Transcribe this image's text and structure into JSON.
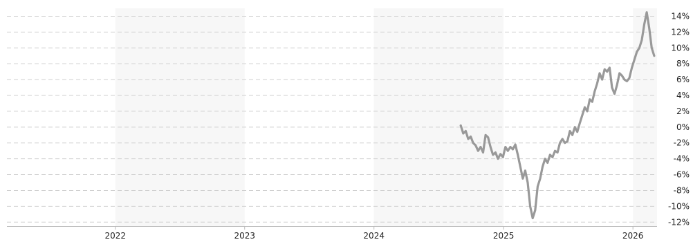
{
  "chart_data": {
    "type": "line",
    "title": "",
    "xlabel": "",
    "ylabel": "",
    "x_ticks": [
      "2022",
      "2023",
      "2024",
      "2025",
      "2026"
    ],
    "y_ticks": [
      "14%",
      "12%",
      "10%",
      "8%",
      "6%",
      "4%",
      "2%",
      "0%",
      "-2%",
      "-4%",
      "-6%",
      "-8%",
      "-10%",
      "-12%"
    ],
    "y_tick_values": [
      14,
      12,
      10,
      8,
      6,
      4,
      2,
      0,
      -2,
      -4,
      -6,
      -8,
      -10,
      -12
    ],
    "xlim": [
      "2021-03-01",
      "2026-03-10"
    ],
    "ylim": [
      -12.5,
      15
    ],
    "y_unit": "%",
    "grid": true,
    "shaded_year_bands": [
      "2022",
      "2024",
      "2026"
    ],
    "colors": {
      "line": "#999999",
      "band": "#f7f7f7",
      "grid": "#cfcfcf"
    },
    "series": [
      {
        "x": [
          "2024-09-02",
          "2024-09-09",
          "2024-09-16",
          "2024-09-23",
          "2024-09-30",
          "2024-10-07",
          "2024-10-14",
          "2024-10-21",
          "2024-10-28",
          "2024-11-04",
          "2024-11-11",
          "2024-11-18",
          "2024-11-25",
          "2024-12-02",
          "2024-12-09",
          "2024-12-16",
          "2024-12-23",
          "2024-12-30",
          "2025-01-06",
          "2025-01-13",
          "2025-01-20",
          "2025-01-27",
          "2025-02-03",
          "2025-02-10",
          "2025-02-17",
          "2025-02-24",
          "2025-03-03",
          "2025-03-10",
          "2025-03-17",
          "2025-03-24",
          "2025-03-31",
          "2025-04-07",
          "2025-04-14",
          "2025-04-21",
          "2025-04-28",
          "2025-05-05",
          "2025-05-12",
          "2025-05-19",
          "2025-05-26",
          "2025-06-02",
          "2025-06-09",
          "2025-06-16",
          "2025-06-23",
          "2025-06-30",
          "2025-07-07",
          "2025-07-14",
          "2025-07-21",
          "2025-07-28",
          "2025-08-04",
          "2025-08-11",
          "2025-08-18",
          "2025-08-25",
          "2025-09-01",
          "2025-09-08",
          "2025-09-15",
          "2025-09-22",
          "2025-09-29",
          "2025-10-06",
          "2025-10-13",
          "2025-10-20",
          "2025-10-27",
          "2025-11-03",
          "2025-11-10",
          "2025-11-17",
          "2025-11-24",
          "2025-12-01",
          "2025-12-08",
          "2025-12-15",
          "2025-12-22",
          "2025-12-29",
          "2026-01-05",
          "2026-01-12",
          "2026-01-19",
          "2026-01-26",
          "2026-02-02",
          "2026-02-09",
          "2026-02-16",
          "2026-02-23",
          "2026-03-02"
        ],
        "y": [
          0.2,
          -0.8,
          -0.5,
          -1.5,
          -1.2,
          -2.0,
          -2.3,
          -3.0,
          -2.5,
          -3.2,
          -1.0,
          -1.3,
          -2.5,
          -3.5,
          -3.2,
          -4.0,
          -3.4,
          -3.8,
          -2.5,
          -3.0,
          -2.5,
          -2.8,
          -2.2,
          -3.5,
          -5.0,
          -6.5,
          -5.5,
          -7.0,
          -10.0,
          -11.5,
          -10.5,
          -7.5,
          -6.5,
          -5.0,
          -4.0,
          -4.5,
          -3.5,
          -3.8,
          -3.0,
          -3.2,
          -2.0,
          -1.5,
          -2.0,
          -1.8,
          -0.5,
          -1.0,
          0.0,
          -0.6,
          0.5,
          1.5,
          2.5,
          2.0,
          3.5,
          3.2,
          4.5,
          5.5,
          6.8,
          6.0,
          7.3,
          7.0,
          7.5,
          5.0,
          4.2,
          5.3,
          6.8,
          6.5,
          6.0,
          5.8,
          6.2,
          7.5,
          8.5,
          9.5,
          10.0,
          11.0,
          13.0,
          14.5,
          12.5,
          10.0,
          9.0
        ]
      }
    ]
  }
}
